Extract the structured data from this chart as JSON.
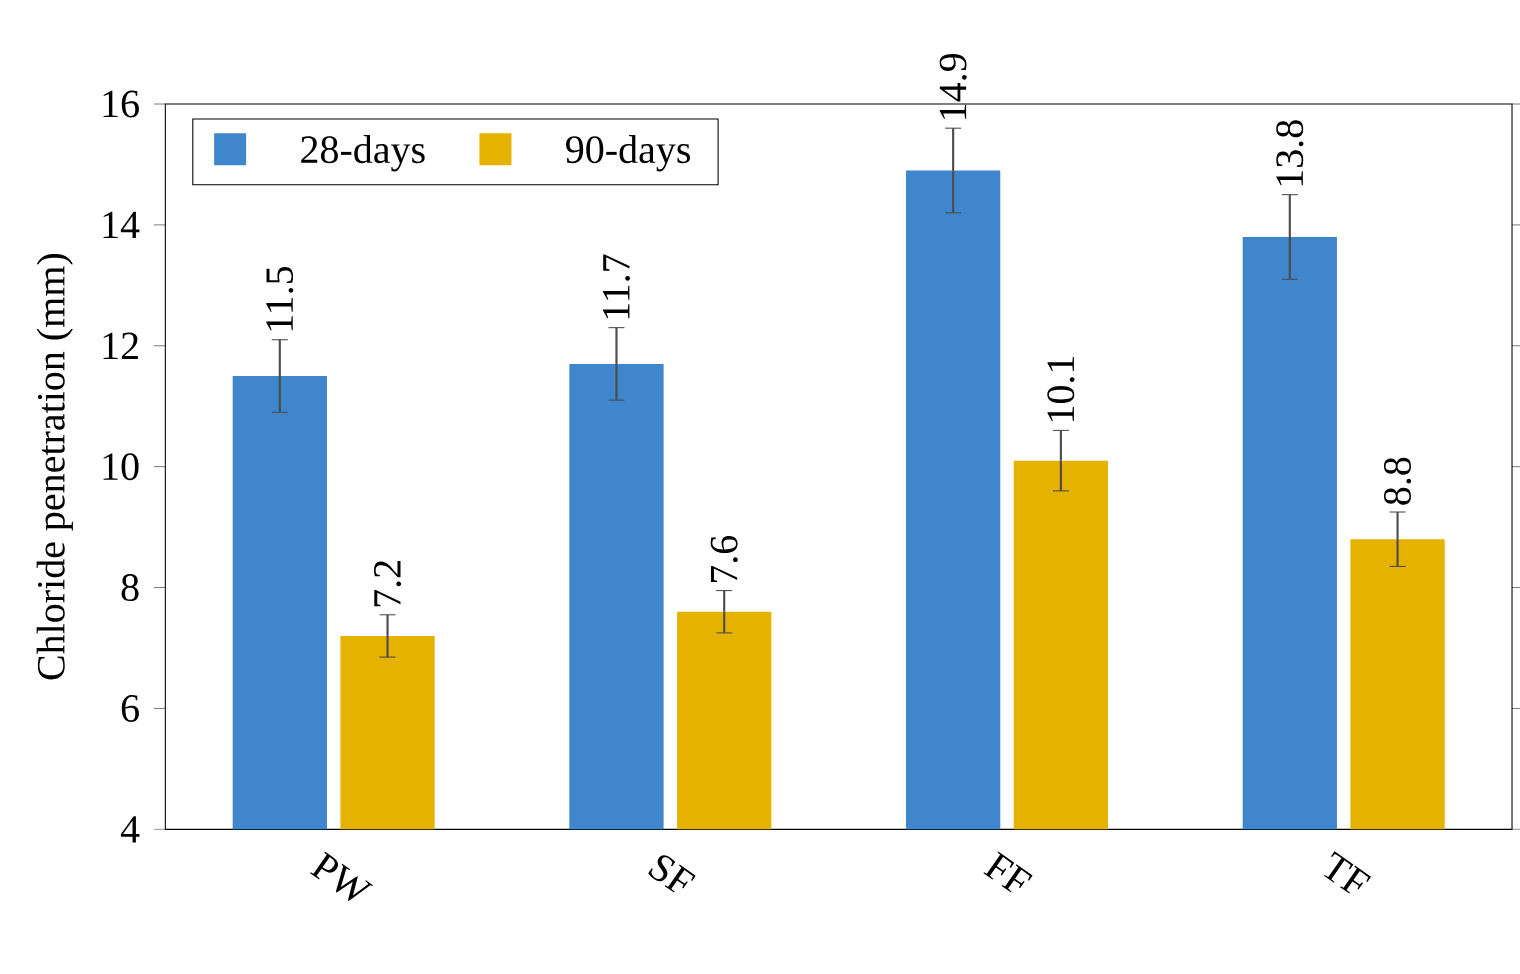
{
  "chart_data": {
    "type": "bar",
    "ylabel": "Chloride penetration (mm)",
    "categories": [
      "PW",
      "SF",
      "FF",
      "TF"
    ],
    "series": [
      {
        "name": "28-days",
        "color": "#3f86cc",
        "values": [
          11.5,
          11.7,
          14.9,
          13.8
        ],
        "errors": [
          0.6,
          0.6,
          0.7,
          0.7
        ]
      },
      {
        "name": "90-days",
        "color": "#e6b200",
        "values": [
          7.2,
          7.6,
          10.1,
          8.8
        ],
        "errors": [
          0.35,
          0.35,
          0.5,
          0.45
        ]
      }
    ],
    "ylim": [
      4,
      16
    ],
    "yticks": [
      4,
      6,
      8,
      10,
      12,
      14,
      16
    ],
    "data_labels": true,
    "legend": "top left",
    "grid": false
  }
}
